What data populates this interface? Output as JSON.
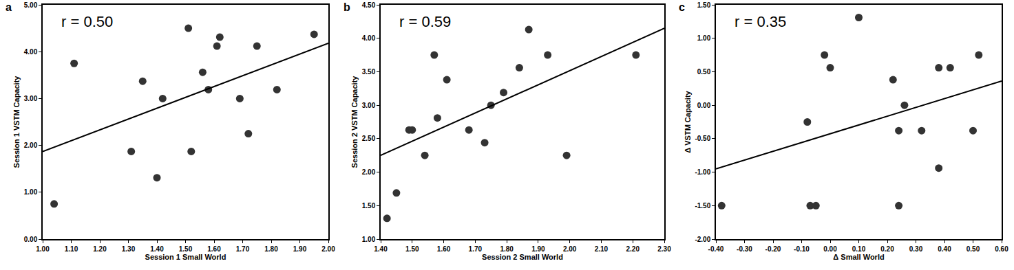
{
  "chart_data": [
    {
      "type": "scatter",
      "panel": "a",
      "annotation": "r = 0.50",
      "x_label": "Session 1 Small World",
      "y_label": "Session 1 VSTM Capacity",
      "color": "#333333",
      "marker": "circle",
      "grid": false,
      "x": [
        1.04,
        1.11,
        1.31,
        1.35,
        1.4,
        1.42,
        1.51,
        1.52,
        1.56,
        1.58,
        1.61,
        1.62,
        1.69,
        1.72,
        1.75,
        1.82,
        1.95
      ],
      "y": [
        0.75,
        3.75,
        1.87,
        3.37,
        1.31,
        3.0,
        4.5,
        1.87,
        3.56,
        3.19,
        4.12,
        4.31,
        3.0,
        2.25,
        4.12,
        3.19,
        4.37
      ],
      "fit_line": {
        "x": [
          1.0,
          2.0
        ],
        "y": [
          1.87,
          4.18
        ]
      },
      "xlim": [
        1.0,
        2.0
      ],
      "ylim": [
        0.0,
        5.0
      ],
      "xticks": [
        {
          "value": 1.0,
          "label": "1.00"
        },
        {
          "value": 1.1,
          "label": "1.10"
        },
        {
          "value": 1.2,
          "label": "1.20"
        },
        {
          "value": 1.3,
          "label": "1.30"
        },
        {
          "value": 1.4,
          "label": "1.40"
        },
        {
          "value": 1.5,
          "label": "1.50"
        },
        {
          "value": 1.6,
          "label": "1.60"
        },
        {
          "value": 1.7,
          "label": "1.70"
        },
        {
          "value": 1.8,
          "label": "1.80"
        },
        {
          "value": 1.9,
          "label": "1.90"
        },
        {
          "value": 2.0,
          "label": "2.00"
        }
      ],
      "yticks": [
        {
          "value": 0,
          "label": "0.00"
        },
        {
          "value": 1,
          "label": "1.00"
        },
        {
          "value": 2,
          "label": "2.00"
        },
        {
          "value": 3,
          "label": "3.00"
        },
        {
          "value": 4,
          "label": "4.00"
        },
        {
          "value": 5,
          "label": "5.00"
        }
      ]
    },
    {
      "type": "scatter",
      "panel": "b",
      "annotation": "r = 0.59",
      "x_label": "Session 2 Small World",
      "y_label": "Session 2 VSTM Capacity",
      "color": "#333333",
      "marker": "circle",
      "grid": false,
      "x": [
        1.42,
        1.45,
        1.49,
        1.5,
        1.54,
        1.57,
        1.58,
        1.61,
        1.68,
        1.73,
        1.75,
        1.79,
        1.84,
        1.87,
        1.93,
        1.99,
        2.21
      ],
      "y": [
        1.31,
        1.69,
        2.63,
        2.63,
        2.25,
        3.75,
        2.81,
        3.38,
        2.63,
        2.44,
        3.0,
        3.19,
        3.56,
        4.13,
        3.75,
        2.25,
        3.75
      ],
      "fit_line": {
        "x": [
          1.4,
          2.3
        ],
        "y": [
          2.25,
          4.15
        ]
      },
      "xlim": [
        1.4,
        2.3
      ],
      "ylim": [
        1.0,
        4.5
      ],
      "xticks": [
        {
          "value": 1.4,
          "label": "1.40"
        },
        {
          "value": 1.5,
          "label": "1.50"
        },
        {
          "value": 1.6,
          "label": "1.60"
        },
        {
          "value": 1.7,
          "label": "1.70"
        },
        {
          "value": 1.8,
          "label": "1.80"
        },
        {
          "value": 1.9,
          "label": "1.90"
        },
        {
          "value": 2.0,
          "label": "2.00"
        },
        {
          "value": 2.1,
          "label": "2.10"
        },
        {
          "value": 2.2,
          "label": "2.20"
        },
        {
          "value": 2.3,
          "label": "2.30"
        }
      ],
      "yticks": [
        {
          "value": 1.0,
          "label": "1.00"
        },
        {
          "value": 1.5,
          "label": "1.50"
        },
        {
          "value": 2.0,
          "label": "2.00"
        },
        {
          "value": 2.5,
          "label": "2.50"
        },
        {
          "value": 3.0,
          "label": "3.00"
        },
        {
          "value": 3.5,
          "label": "3.50"
        },
        {
          "value": 4.0,
          "label": "4.00"
        },
        {
          "value": 4.5,
          "label": "4.50"
        }
      ]
    },
    {
      "type": "scatter",
      "panel": "c",
      "annotation": "r = 0.35",
      "x_label": "Δ Small World",
      "y_label": "Δ VSTM Capacity",
      "color": "#333333",
      "marker": "circle",
      "grid": false,
      "x": [
        -0.38,
        -0.08,
        -0.07,
        -0.05,
        -0.02,
        0.0,
        0.1,
        0.22,
        0.24,
        0.24,
        0.26,
        0.32,
        0.38,
        0.38,
        0.42,
        0.5,
        0.52
      ],
      "y": [
        -1.5,
        -0.25,
        -1.5,
        -1.5,
        0.75,
        0.56,
        1.31,
        0.38,
        -0.38,
        -1.5,
        0.0,
        -0.38,
        0.56,
        -0.94,
        0.56,
        -0.38,
        0.75
      ],
      "fit_line": {
        "x": [
          -0.4,
          0.6
        ],
        "y": [
          -0.95,
          0.36
        ]
      },
      "xlim": [
        -0.4,
        0.6
      ],
      "ylim": [
        -2.0,
        1.5
      ],
      "xticks": [
        {
          "value": -0.4,
          "label": "-0.40"
        },
        {
          "value": -0.3,
          "label": "-0.30"
        },
        {
          "value": -0.2,
          "label": "-0.20"
        },
        {
          "value": -0.1,
          "label": "-0.10"
        },
        {
          "value": 0.0,
          "label": "0.00"
        },
        {
          "value": 0.1,
          "label": "0.10"
        },
        {
          "value": 0.2,
          "label": "0.20"
        },
        {
          "value": 0.3,
          "label": "0.30"
        },
        {
          "value": 0.4,
          "label": "0.40"
        },
        {
          "value": 0.5,
          "label": "0.50"
        },
        {
          "value": 0.6,
          "label": "0.60"
        }
      ],
      "yticks": [
        {
          "value": -2.0,
          "label": "-2.00"
        },
        {
          "value": -1.5,
          "label": "-1.50"
        },
        {
          "value": -1.0,
          "label": "-1.00"
        },
        {
          "value": -0.5,
          "label": "-0.50"
        },
        {
          "value": 0.0,
          "label": "0.00"
        },
        {
          "value": 0.5,
          "label": "0.50"
        },
        {
          "value": 1.0,
          "label": "1.00"
        },
        {
          "value": 1.5,
          "label": "1.50"
        }
      ]
    }
  ]
}
